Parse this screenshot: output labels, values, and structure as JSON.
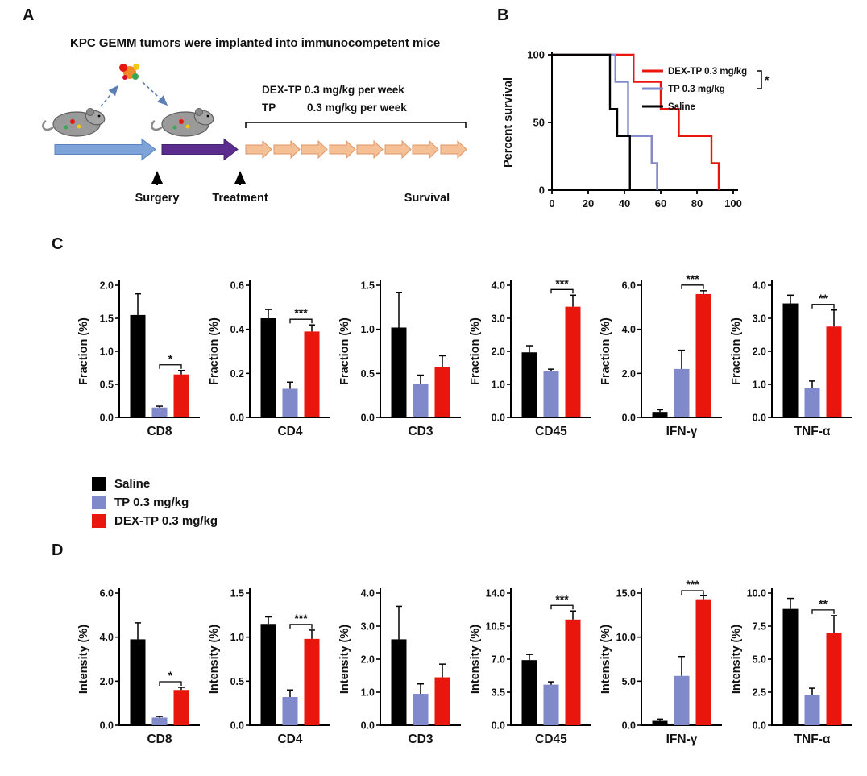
{
  "figure": {
    "panel_a": {
      "label": "A",
      "title": "KPC GEMM tumors were implanted into immunocompetent mice",
      "dose_line1": "DEX-TP 0.3 mg/kg per week",
      "dose_line2_drug": "TP",
      "dose_line2_dose": "0.3 mg/kg per week",
      "surgery": "Surgery",
      "treatment": "Treatment",
      "survival": "Survival"
    },
    "panel_b": {
      "label": "B"
    },
    "panel_c": {
      "label": "C"
    },
    "panel_d": {
      "label": "D"
    },
    "legend": {
      "items": [
        {
          "label": "Saline",
          "color": "#000000"
        },
        {
          "label": "TP 0.3 mg/kg",
          "color": "#8089c9"
        },
        {
          "label": "DEX-TP 0.3 mg/kg",
          "color": "#e8160c"
        }
      ]
    }
  },
  "colors": {
    "saline": "#000000",
    "tp": "#8089c9",
    "dextp": "#e8160c",
    "timeline_blue": "#7da3d8",
    "timeline_purple": "#5b2d8f",
    "timeline_orange": "#f6c096"
  },
  "chart_data": [
    {
      "id": "survival",
      "type": "line",
      "ylabel": "Percent survival",
      "xlim": [
        0,
        100
      ],
      "ylim": [
        0,
        100
      ],
      "xticks": [
        "0",
        "20",
        "40",
        "60",
        "80",
        "100"
      ],
      "yticks": [
        "0",
        "50",
        "100"
      ],
      "legend_position": "upper right",
      "significance": "*",
      "series": [
        {
          "name": "DEX-TP 0.3 mg/kg",
          "color": "#e8160c",
          "points": [
            [
              0,
              100
            ],
            [
              45,
              100
            ],
            [
              45,
              80
            ],
            [
              60,
              80
            ],
            [
              60,
              60
            ],
            [
              70,
              60
            ],
            [
              70,
              40
            ],
            [
              88,
              40
            ],
            [
              88,
              20
            ],
            [
              92,
              20
            ],
            [
              92,
              0
            ]
          ]
        },
        {
          "name": "TP 0.3 mg/kg",
          "color": "#8089c9",
          "points": [
            [
              0,
              100
            ],
            [
              35,
              100
            ],
            [
              35,
              80
            ],
            [
              42,
              80
            ],
            [
              42,
              40
            ],
            [
              55,
              40
            ],
            [
              55,
              20
            ],
            [
              58,
              20
            ],
            [
              58,
              0
            ]
          ]
        },
        {
          "name": "Saline",
          "color": "#000000",
          "points": [
            [
              0,
              100
            ],
            [
              32,
              100
            ],
            [
              32,
              60
            ],
            [
              36,
              60
            ],
            [
              36,
              40
            ],
            [
              43,
              40
            ],
            [
              43,
              0
            ]
          ]
        }
      ]
    },
    {
      "id": "panel_c",
      "type": "bar",
      "ylabel": "Fraction (%)",
      "groups": [
        "Saline",
        "TP 0.3 mg/kg",
        "DEX-TP 0.3 mg/kg"
      ],
      "group_colors": [
        "#000000",
        "#8089c9",
        "#e8160c"
      ],
      "subplots": [
        {
          "category": "CD8",
          "ymax": 2.0,
          "yticks": [
            "0.0",
            "0.5",
            "1.0",
            "1.5",
            "2.0"
          ],
          "values": [
            1.55,
            0.15,
            0.65
          ],
          "errors": [
            0.32,
            0.02,
            0.06
          ],
          "sig": "*",
          "sig_pair": [
            1,
            2
          ]
        },
        {
          "category": "CD4",
          "ymax": 0.6,
          "yticks": [
            "0.0",
            "0.2",
            "0.4",
            "0.6"
          ],
          "values": [
            0.45,
            0.13,
            0.39
          ],
          "errors": [
            0.04,
            0.03,
            0.03
          ],
          "sig": "***",
          "sig_pair": [
            1,
            2
          ]
        },
        {
          "category": "CD3",
          "ymax": 1.5,
          "yticks": [
            "0.0",
            "0.5",
            "1.0",
            "1.5"
          ],
          "values": [
            1.02,
            0.38,
            0.57
          ],
          "errors": [
            0.4,
            0.1,
            0.13
          ],
          "sig": "",
          "sig_pair": null
        },
        {
          "category": "CD45",
          "ymax": 4.0,
          "yticks": [
            "0.0",
            "1.0",
            "2.0",
            "3.0",
            "4.0"
          ],
          "values": [
            1.97,
            1.4,
            3.35
          ],
          "errors": [
            0.2,
            0.06,
            0.35
          ],
          "sig": "***",
          "sig_pair": [
            1,
            2
          ]
        },
        {
          "category": "IFN-γ",
          "ymax": 6.0,
          "yticks": [
            "0.0",
            "2.0",
            "4.0",
            "6.0"
          ],
          "values": [
            0.25,
            2.2,
            5.6
          ],
          "errors": [
            0.1,
            0.85,
            0.15
          ],
          "sig": "***",
          "sig_pair": [
            1,
            2
          ]
        },
        {
          "category": "TNF-α",
          "ymax": 4.0,
          "yticks": [
            "0.0",
            "1.0",
            "2.0",
            "3.0",
            "4.0"
          ],
          "values": [
            3.45,
            0.9,
            2.75
          ],
          "errors": [
            0.25,
            0.2,
            0.5
          ],
          "sig": "**",
          "sig_pair": [
            1,
            2
          ]
        }
      ]
    },
    {
      "id": "panel_d",
      "type": "bar",
      "ylabel": "Intensity (%)",
      "groups": [
        "Saline",
        "TP 0.3 mg/kg",
        "DEX-TP 0.3 mg/kg"
      ],
      "group_colors": [
        "#000000",
        "#8089c9",
        "#e8160c"
      ],
      "subplots": [
        {
          "category": "CD8",
          "ymax": 6.0,
          "yticks": [
            "0.0",
            "2.0",
            "4.0",
            "6.0"
          ],
          "values": [
            3.9,
            0.35,
            1.6
          ],
          "errors": [
            0.75,
            0.05,
            0.12
          ],
          "sig": "*",
          "sig_pair": [
            1,
            2
          ]
        },
        {
          "category": "CD4",
          "ymax": 1.5,
          "yticks": [
            "0.0",
            "0.5",
            "1.0",
            "1.5"
          ],
          "values": [
            1.15,
            0.32,
            0.98
          ],
          "errors": [
            0.08,
            0.08,
            0.1
          ],
          "sig": "***",
          "sig_pair": [
            1,
            2
          ]
        },
        {
          "category": "CD3",
          "ymax": 4.0,
          "yticks": [
            "0.0",
            "1.0",
            "2.0",
            "3.0",
            "4.0"
          ],
          "values": [
            2.6,
            0.95,
            1.45
          ],
          "errors": [
            1.0,
            0.3,
            0.4
          ],
          "sig": "",
          "sig_pair": null
        },
        {
          "category": "CD45",
          "ymax": 14.0,
          "yticks": [
            "0.0",
            "3.5",
            "7.0",
            "10.5",
            "14.0"
          ],
          "values": [
            6.9,
            4.3,
            11.2
          ],
          "errors": [
            0.6,
            0.3,
            0.9
          ],
          "sig": "***",
          "sig_pair": [
            1,
            2
          ]
        },
        {
          "category": "IFN-γ",
          "ymax": 15.0,
          "yticks": [
            "0.0",
            "5.0",
            "10.0",
            "15.0"
          ],
          "values": [
            0.5,
            5.6,
            14.3
          ],
          "errors": [
            0.2,
            2.2,
            0.4
          ],
          "sig": "***",
          "sig_pair": [
            1,
            2
          ]
        },
        {
          "category": "TNF-α",
          "ymax": 10.0,
          "yticks": [
            "0.0",
            "2.5",
            "5.0",
            "7.5",
            "10.0"
          ],
          "values": [
            8.8,
            2.3,
            7.0
          ],
          "errors": [
            0.8,
            0.5,
            1.3
          ],
          "sig": "**",
          "sig_pair": [
            1,
            2
          ]
        }
      ]
    }
  ]
}
